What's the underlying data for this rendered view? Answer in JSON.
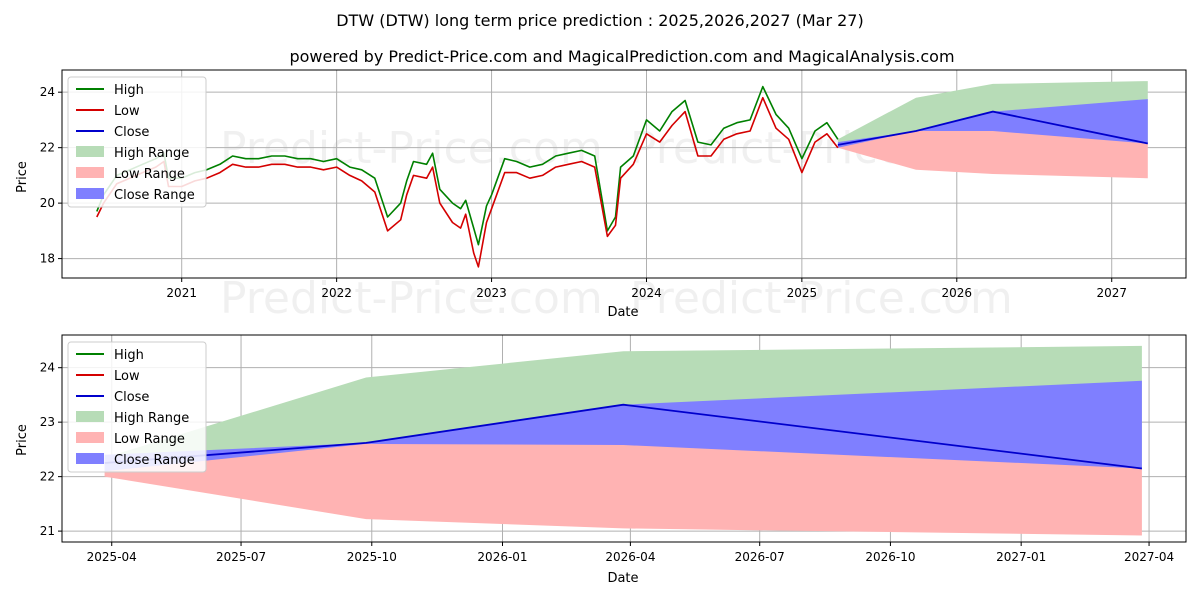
{
  "header": {
    "title": "DTW (DTW) long term price prediction : 2025,2026,2027 (Mar 27)",
    "subtitle": "powered by Predict-Price.com and MagicalPrediction.com and MagicalAnalysis.com"
  },
  "watermark": "Predict-Price.com",
  "colors": {
    "high": "#008000",
    "low": "#d40000",
    "close": "#0000cc",
    "high_range": "#b7dcb7",
    "low_range": "#ffb3b3",
    "close_range": "#7f7fff",
    "grid": "#b0b0b0"
  },
  "legend": {
    "high": "High",
    "low": "Low",
    "close": "Close",
    "high_range": "High Range",
    "low_range": "Low Range",
    "close_range": "Close Range"
  },
  "chart_data": [
    {
      "type": "line",
      "xlabel": "Date",
      "ylabel": "Price",
      "xlim": [
        "2020-03-25",
        "2027-06-25"
      ],
      "ylim": [
        17.3,
        24.8
      ],
      "yticks": [
        18,
        20,
        22,
        24
      ],
      "xticks": [
        {
          "label": "2021",
          "date": "2021-01-01"
        },
        {
          "label": "2022",
          "date": "2022-01-01"
        },
        {
          "label": "2023",
          "date": "2023-01-01"
        },
        {
          "label": "2024",
          "date": "2024-01-01"
        },
        {
          "label": "2025",
          "date": "2025-01-01"
        },
        {
          "label": "2026",
          "date": "2026-01-01"
        },
        {
          "label": "2027",
          "date": "2027-01-01"
        }
      ],
      "grid": true,
      "legend_position": "top-left",
      "history": {
        "dates": [
          "2020-06-15",
          "2020-07-01",
          "2020-08-01",
          "2020-09-01",
          "2020-10-01",
          "2020-11-01",
          "2020-11-20",
          "2020-12-01",
          "2021-01-01",
          "2021-02-01",
          "2021-03-01",
          "2021-04-01",
          "2021-05-01",
          "2021-06-01",
          "2021-07-01",
          "2021-08-01",
          "2021-09-01",
          "2021-10-01",
          "2021-11-01",
          "2021-12-01",
          "2022-01-01",
          "2022-02-01",
          "2022-03-01",
          "2022-04-01",
          "2022-05-01",
          "2022-06-01",
          "2022-06-15",
          "2022-07-01",
          "2022-08-01",
          "2022-08-15",
          "2022-09-01",
          "2022-10-01",
          "2022-10-20",
          "2022-11-01",
          "2022-11-20",
          "2022-12-01",
          "2022-12-20",
          "2023-01-01",
          "2023-02-01",
          "2023-03-01",
          "2023-04-01",
          "2023-05-01",
          "2023-06-01",
          "2023-07-01",
          "2023-08-01",
          "2023-09-01",
          "2023-10-01",
          "2023-10-20",
          "2023-11-01",
          "2023-12-01",
          "2024-01-01",
          "2024-02-01",
          "2024-03-01",
          "2024-04-01",
          "2024-05-01",
          "2024-06-01",
          "2024-07-01",
          "2024-08-01",
          "2024-09-01",
          "2024-10-01",
          "2024-11-01",
          "2024-12-01",
          "2025-01-01",
          "2025-02-01",
          "2025-03-01",
          "2025-03-27"
        ],
        "high": [
          19.7,
          20.3,
          21.0,
          21.2,
          21.4,
          21.6,
          21.8,
          20.9,
          20.9,
          21.1,
          21.2,
          21.4,
          21.7,
          21.6,
          21.6,
          21.7,
          21.7,
          21.6,
          21.6,
          21.5,
          21.6,
          21.3,
          21.2,
          20.9,
          19.5,
          20.0,
          20.8,
          21.5,
          21.4,
          21.8,
          20.5,
          20.0,
          19.8,
          20.1,
          19.1,
          18.5,
          19.9,
          20.3,
          21.6,
          21.5,
          21.3,
          21.4,
          21.7,
          21.8,
          21.9,
          21.7,
          19.0,
          19.5,
          21.3,
          21.7,
          23.0,
          22.6,
          23.3,
          23.7,
          22.2,
          22.1,
          22.7,
          22.9,
          23.0,
          24.2,
          23.2,
          22.7,
          21.6,
          22.6,
          22.9,
          22.3
        ],
        "low": [
          19.5,
          20.0,
          20.7,
          20.9,
          21.1,
          21.3,
          21.5,
          20.6,
          20.6,
          20.8,
          20.9,
          21.1,
          21.4,
          21.3,
          21.3,
          21.4,
          21.4,
          21.3,
          21.3,
          21.2,
          21.3,
          21.0,
          20.8,
          20.4,
          19.0,
          19.4,
          20.3,
          21.0,
          20.9,
          21.3,
          20.0,
          19.3,
          19.1,
          19.6,
          18.2,
          17.7,
          19.3,
          19.8,
          21.1,
          21.1,
          20.9,
          21.0,
          21.3,
          21.4,
          21.5,
          21.3,
          18.8,
          19.2,
          20.9,
          21.4,
          22.5,
          22.2,
          22.8,
          23.3,
          21.7,
          21.7,
          22.3,
          22.5,
          22.6,
          23.8,
          22.7,
          22.3,
          21.1,
          22.2,
          22.5,
          22.0
        ]
      },
      "forecast": {
        "dates": [
          "2025-03-27",
          "2025-09-27",
          "2026-03-27",
          "2027-03-27"
        ],
        "close": [
          22.1,
          22.6,
          23.3,
          22.15
        ],
        "high_range_upper": [
          22.3,
          23.8,
          24.3,
          24.4
        ],
        "low_range_lower": [
          22.0,
          21.2,
          21.05,
          20.9
        ],
        "close_range_lower": [
          22.0,
          22.6,
          22.6,
          22.15
        ],
        "close_range_upper": [
          22.2,
          22.6,
          23.3,
          23.75
        ]
      }
    },
    {
      "type": "line",
      "xlabel": "Date",
      "ylabel": "Price",
      "xlim": [
        "2025-02-25",
        "2027-04-27"
      ],
      "ylim": [
        20.8,
        24.6
      ],
      "yticks": [
        21,
        22,
        23,
        24
      ],
      "xticks": [
        {
          "label": "2025-04",
          "date": "2025-04-01"
        },
        {
          "label": "2025-07",
          "date": "2025-07-01"
        },
        {
          "label": "2025-10",
          "date": "2025-10-01"
        },
        {
          "label": "2026-01",
          "date": "2026-01-01"
        },
        {
          "label": "2026-04",
          "date": "2026-04-01"
        },
        {
          "label": "2026-07",
          "date": "2026-07-01"
        },
        {
          "label": "2026-10",
          "date": "2026-10-01"
        },
        {
          "label": "2027-01",
          "date": "2027-01-01"
        },
        {
          "label": "2027-04",
          "date": "2027-04-01"
        }
      ],
      "grid": true,
      "legend_position": "top-left",
      "forecast": {
        "dates": [
          "2025-03-27",
          "2025-09-27",
          "2026-03-27",
          "2027-03-27"
        ],
        "close": [
          22.25,
          22.62,
          23.32,
          22.15
        ],
        "high_range_upper": [
          22.35,
          23.82,
          24.3,
          24.4
        ],
        "low_range_lower": [
          22.0,
          21.22,
          21.05,
          20.92
        ],
        "close_range_lower": [
          22.1,
          22.6,
          22.58,
          22.15
        ],
        "close_range_upper": [
          22.4,
          22.62,
          23.32,
          23.76
        ]
      }
    }
  ]
}
